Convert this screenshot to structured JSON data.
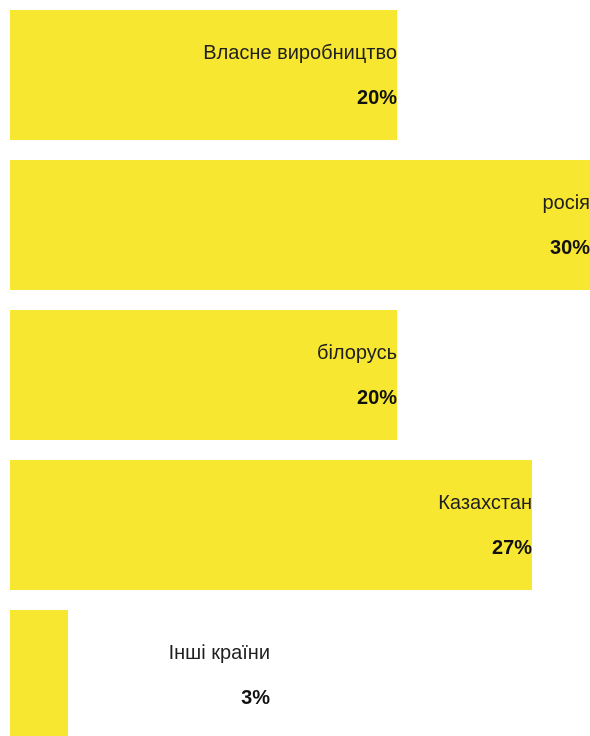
{
  "chart_data": {
    "type": "bar",
    "orientation": "horizontal",
    "categories": [
      "Власне виробництво",
      "росія",
      "білорусь",
      "Казахстан",
      "Інші країни"
    ],
    "values": [
      20,
      30,
      20,
      27,
      3
    ],
    "value_labels": [
      "20%",
      "30%",
      "20%",
      "27%",
      "3%"
    ],
    "max_value": 30,
    "bar_color": "#f7e731",
    "title": "",
    "xlabel": "",
    "ylabel": ""
  }
}
